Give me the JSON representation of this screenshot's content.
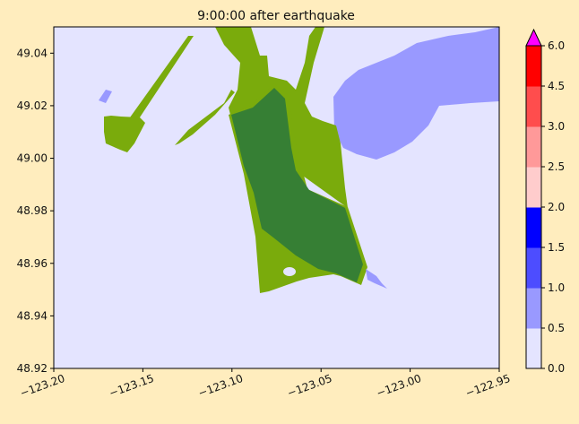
{
  "chart_data": {
    "type": "heatmap",
    "title": "9:00:00 after earthquake",
    "xlabel": "",
    "ylabel": "",
    "xlim": [
      -123.2,
      -122.95
    ],
    "ylim": [
      48.92,
      49.05
    ],
    "xticks": [
      "−123.20",
      "−123.15",
      "−123.10",
      "−123.05",
      "−123.00",
      "−122.95"
    ],
    "xtick_values": [
      -123.2,
      -123.15,
      -123.1,
      -123.05,
      -123.0,
      -122.95
    ],
    "yticks": [
      "48.92",
      "48.94",
      "48.96",
      "48.98",
      "49.00",
      "49.02",
      "49.04"
    ],
    "ytick_values": [
      48.92,
      48.94,
      48.96,
      48.98,
      49.0,
      49.02,
      49.04
    ],
    "colorbar": {
      "levels": [
        0.0,
        0.5,
        1.0,
        1.5,
        2.0,
        2.5,
        3.0,
        4.5,
        6.0
      ],
      "labels": [
        "0.0",
        "0.5",
        "1.0",
        "1.5",
        "2.0",
        "2.5",
        "3.0",
        "4.5",
        "6.0"
      ],
      "colors": [
        "#e4e4ff",
        "#9999ff",
        "#4d4dff",
        "#0000ff",
        "#ffcccc",
        "#ff9999",
        "#ff4d4d",
        "#ff0000"
      ],
      "extend_max_color": "#ff00ff"
    },
    "colors": {
      "background_water": "#e4e4ff",
      "land_dark": "#367f34",
      "land_light": "#7aab0c",
      "water_depth_0_5_1": "#9999ff"
    }
  }
}
